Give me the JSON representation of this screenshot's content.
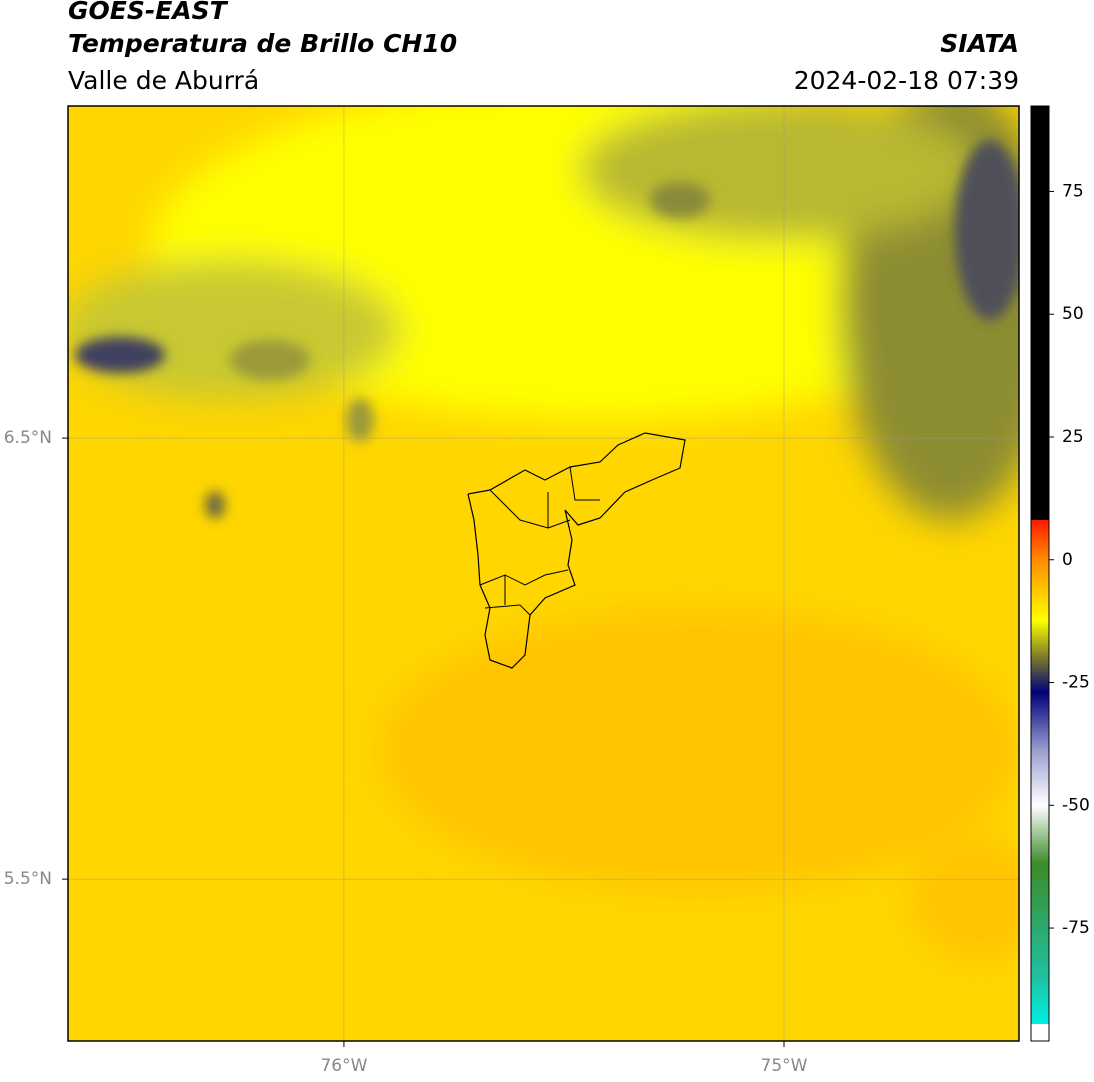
{
  "header": {
    "title": "GOES-EAST",
    "subtitle": "Temperatura de Brillo CH10",
    "region": "Valle de Aburrá",
    "source": "SIATA",
    "datetime": "2024-02-18 07:39"
  },
  "map": {
    "lon_lim": [
      -76.627,
      -74.466
    ],
    "lat_lim": [
      5.133,
      7.253
    ],
    "lon_ticks": [
      {
        "value": -76,
        "label": "76°W"
      },
      {
        "value": -75,
        "label": "75°W"
      }
    ],
    "lat_ticks": [
      {
        "value": 6.5,
        "label": "6.5°N"
      },
      {
        "value": 5.5,
        "label": "5.5°N"
      }
    ]
  },
  "colorbar": {
    "lim": [
      -98,
      92.4
    ],
    "ticks": [
      75,
      50,
      25,
      0,
      -25,
      -50,
      -75
    ]
  }
}
